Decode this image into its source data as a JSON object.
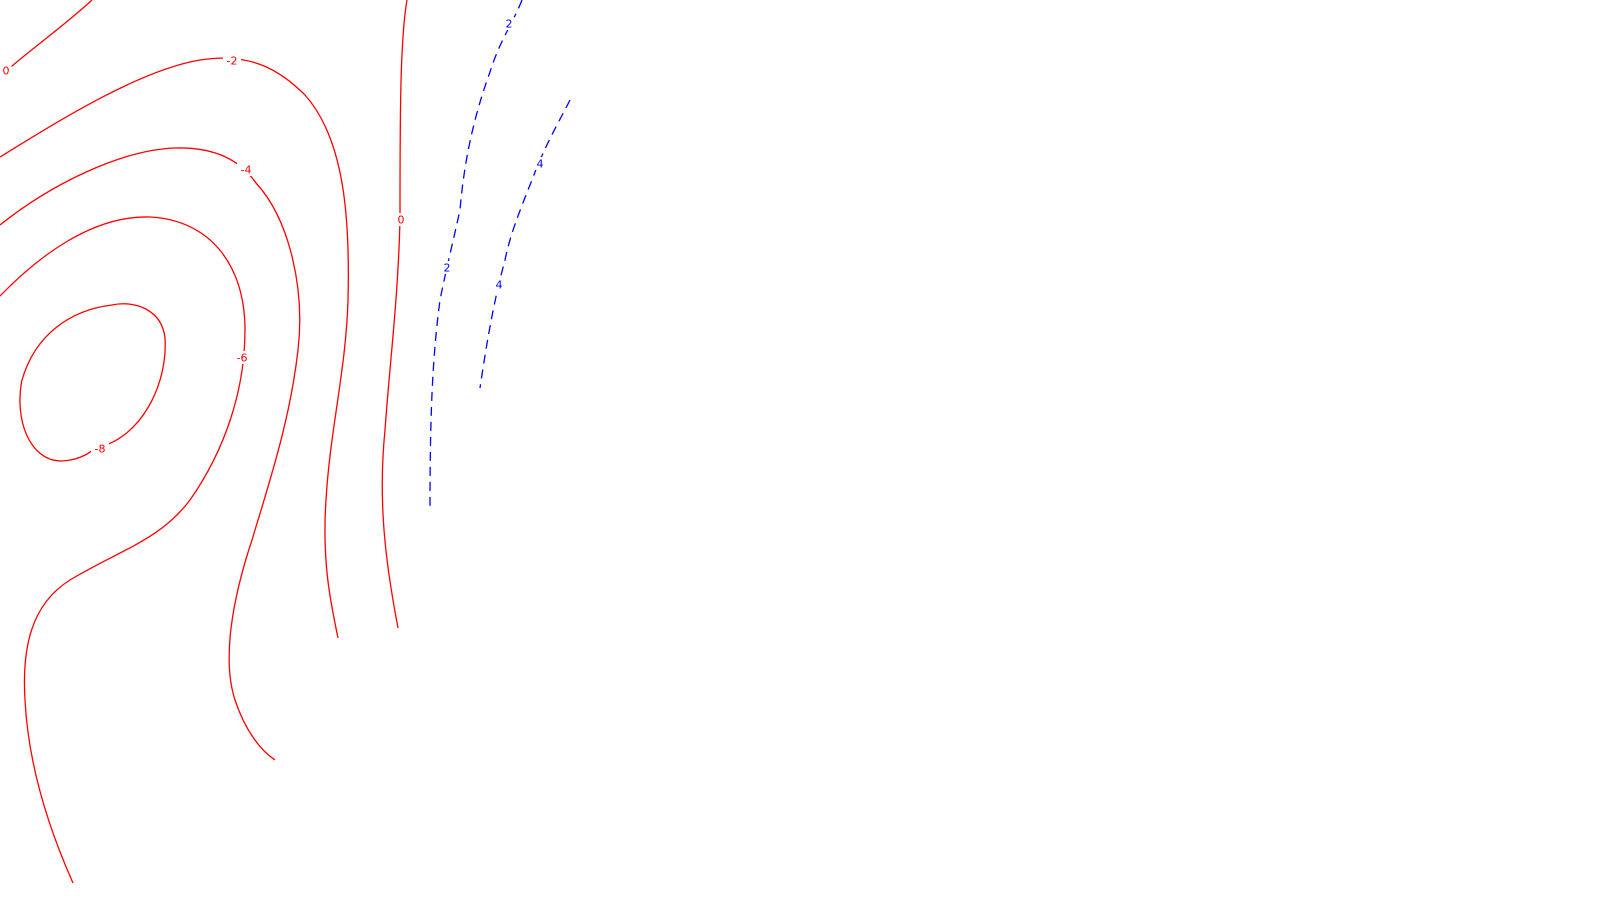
{
  "chart_data": {
    "type": "contour",
    "title": "",
    "xlabel": "",
    "ylabel": "",
    "colors": {
      "negative": "#ff0000",
      "positive": "#0000ff",
      "background": "#ffffff"
    },
    "legend": "none",
    "grid": false,
    "contours": [
      {
        "id": "c-neg-8",
        "level": -8,
        "label": "-8",
        "style": "solid",
        "color": "#ff0000"
      },
      {
        "id": "c-neg-6",
        "level": -6,
        "label": "-6",
        "style": "solid",
        "color": "#ff0000"
      },
      {
        "id": "c-neg-4",
        "level": -4,
        "label": "-4",
        "style": "solid",
        "color": "#ff0000"
      },
      {
        "id": "c-neg-2",
        "level": -2,
        "label": "-2",
        "style": "solid",
        "color": "#ff0000"
      },
      {
        "id": "c-zero-a",
        "level": 0,
        "label": "0",
        "style": "solid",
        "color": "#ff0000"
      },
      {
        "id": "c-zero-b",
        "level": 0,
        "label": "0",
        "style": "solid",
        "color": "#ff0000"
      },
      {
        "id": "c-pos-2",
        "level": 2,
        "labels": [
          "2",
          "2"
        ],
        "style": "dashed",
        "color": "#0000ff"
      },
      {
        "id": "c-pos-4",
        "level": 4,
        "labels": [
          "4",
          "4"
        ],
        "style": "dashed",
        "color": "#0000ff"
      }
    ]
  }
}
